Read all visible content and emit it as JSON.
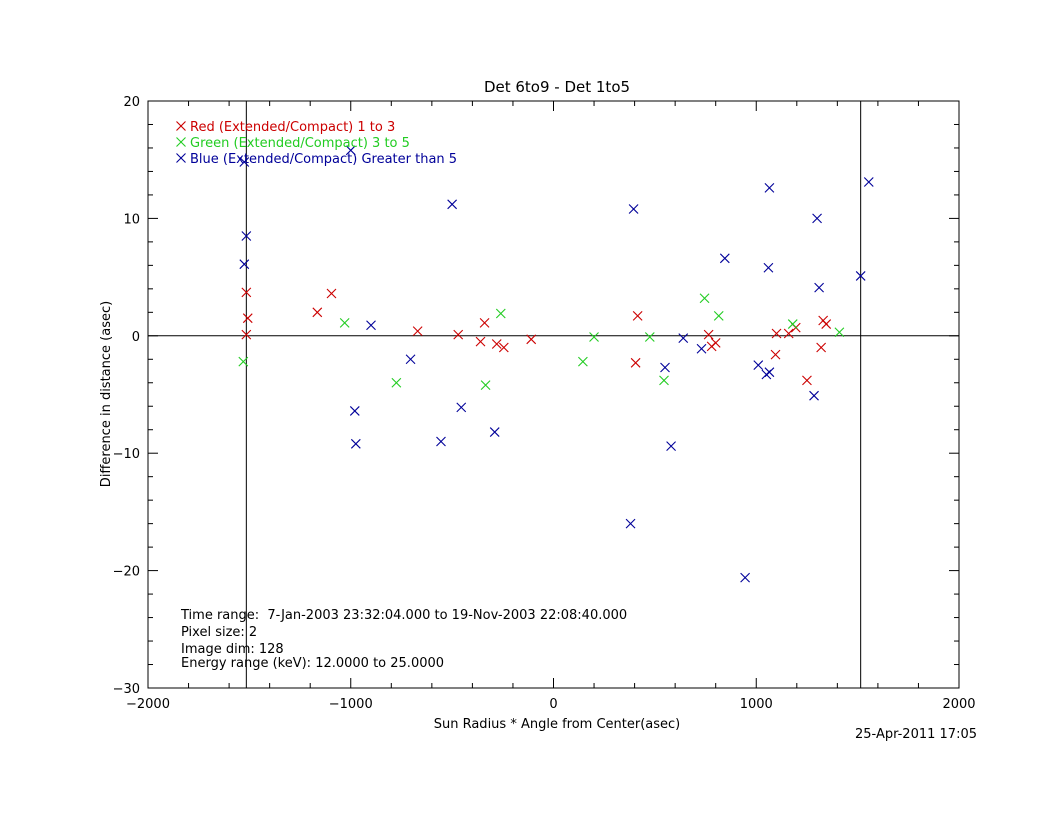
{
  "chart_data": {
    "type": "scatter",
    "title": "Det 6to9 - Det 1to5",
    "xlabel": "Sun Radius * Angle from Center(asec)",
    "ylabel": "Difference in distance (asec)",
    "xlim": [
      -2000,
      2000
    ],
    "ylim": [
      -30,
      20
    ],
    "x_ticks": [
      -2000,
      -1000,
      0,
      1000,
      2000
    ],
    "x_tick_labels": [
      "−2000",
      "−1000",
      "0",
      "1000",
      "2000"
    ],
    "y_ticks": [
      -30,
      -20,
      -10,
      0,
      10,
      20
    ],
    "y_tick_labels": [
      "−30",
      "−20",
      "−10",
      "0",
      "10",
      "20"
    ],
    "reference_lines": {
      "horizontal": [
        0
      ],
      "vertical": [
        -1515,
        1515
      ]
    },
    "legend_placement": "top-left",
    "series": [
      {
        "name": "Red (Extended/Compact) 1 to 3",
        "color": "#cc0000",
        "points": [
          [
            -1515,
            3.7
          ],
          [
            -1508,
            1.5
          ],
          [
            -1515,
            0.1
          ],
          [
            -1165,
            2.0
          ],
          [
            -1095,
            3.6
          ],
          [
            -670,
            0.4
          ],
          [
            -470,
            0.1
          ],
          [
            -360,
            -0.5
          ],
          [
            -340,
            1.1
          ],
          [
            -280,
            -0.7
          ],
          [
            -245,
            -1.0
          ],
          [
            -110,
            -0.3
          ],
          [
            405,
            -2.3
          ],
          [
            415,
            1.7
          ],
          [
            765,
            0.1
          ],
          [
            780,
            -0.9
          ],
          [
            800,
            -0.6
          ],
          [
            1095,
            -1.6
          ],
          [
            1100,
            0.2
          ],
          [
            1160,
            0.2
          ],
          [
            1195,
            0.7
          ],
          [
            1250,
            -3.8
          ],
          [
            1320,
            -1.0
          ],
          [
            1330,
            1.3
          ],
          [
            1345,
            1.0
          ]
        ]
      },
      {
        "name": "Green (Extended/Compact) 3 to 5",
        "color": "#22cc22",
        "points": [
          [
            -1530,
            -2.2
          ],
          [
            -1030,
            1.1
          ],
          [
            -775,
            -4.0
          ],
          [
            -335,
            -4.2
          ],
          [
            -260,
            1.9
          ],
          [
            145,
            -2.2
          ],
          [
            200,
            -0.1
          ],
          [
            475,
            -0.1
          ],
          [
            545,
            -3.8
          ],
          [
            745,
            3.2
          ],
          [
            815,
            1.7
          ],
          [
            1180,
            1.0
          ],
          [
            1410,
            0.3
          ]
        ]
      },
      {
        "name": "Blue (Extended/Compact) Greater than 5",
        "color": "#000099",
        "points": [
          [
            -1525,
            14.8
          ],
          [
            -1515,
            8.5
          ],
          [
            -1525,
            6.1
          ],
          [
            -1000,
            15.8
          ],
          [
            -980,
            -6.4
          ],
          [
            -975,
            -9.2
          ],
          [
            -900,
            0.9
          ],
          [
            -705,
            -2.0
          ],
          [
            -555,
            -9.0
          ],
          [
            -500,
            11.2
          ],
          [
            -455,
            -6.1
          ],
          [
            -290,
            -8.2
          ],
          [
            380,
            -16.0
          ],
          [
            395,
            10.8
          ],
          [
            550,
            -2.7
          ],
          [
            580,
            -9.4
          ],
          [
            640,
            -0.2
          ],
          [
            730,
            -1.1
          ],
          [
            845,
            6.6
          ],
          [
            945,
            -20.6
          ],
          [
            1010,
            -2.5
          ],
          [
            1050,
            -3.3
          ],
          [
            1060,
            5.8
          ],
          [
            1065,
            -3.1
          ],
          [
            1065,
            12.6
          ],
          [
            1285,
            -5.1
          ],
          [
            1300,
            10.0
          ],
          [
            1310,
            4.1
          ],
          [
            1515,
            5.1
          ],
          [
            1555,
            13.1
          ]
        ]
      }
    ],
    "annotations": [
      "Time range:  7-Jan-2003 23:32:04.000 to 19-Nov-2003 22:08:40.000",
      "Pixel size: 2",
      "Image dim: 128",
      "Energy range (keV): 12.0000 to 25.0000"
    ],
    "timestamp": "25-Apr-2011 17:05"
  }
}
